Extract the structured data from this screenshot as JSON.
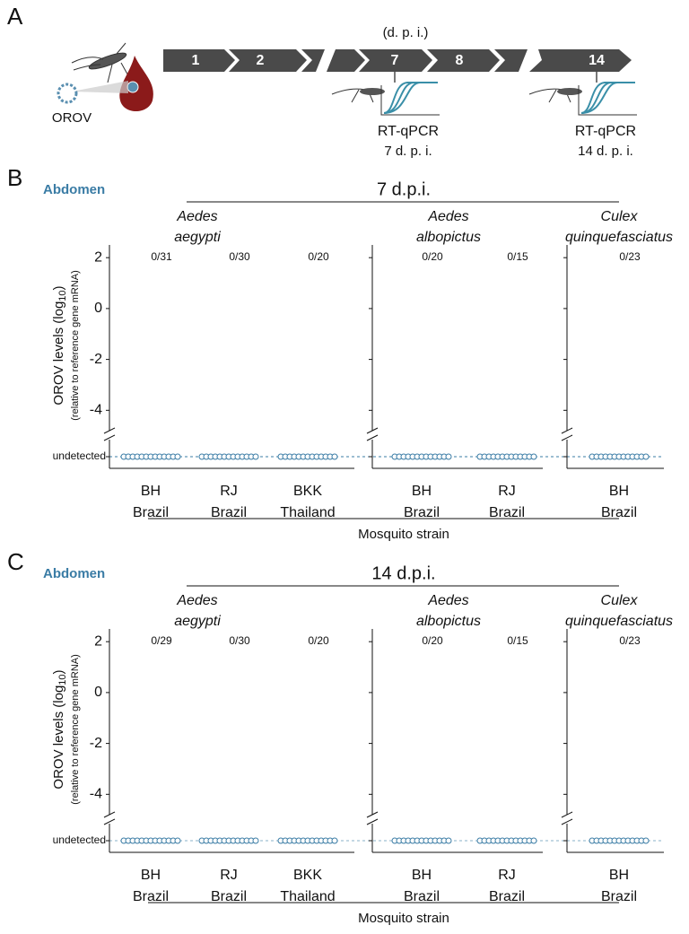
{
  "panel_a": {
    "letter": "A",
    "dpi_label": "(d. p. i.)",
    "days": [
      "1",
      "2",
      "7",
      "8",
      "14"
    ],
    "virus": "OROV",
    "assays": [
      {
        "method": "RT-qPCR",
        "time": "7 d. p. i."
      },
      {
        "method": "RT-qPCR",
        "time": "14 d. p. i."
      }
    ]
  },
  "chart_data": [
    {
      "type": "strip",
      "panel": "B",
      "tissue": "Abdomen",
      "title": "7 d.p.i.",
      "ylabel": {
        "prefix": "OROV levels (log",
        "sub": "10",
        "suffix": ")",
        "note": "(relative to reference gene mRNA)"
      },
      "xlabel": "Mosquito strain",
      "undetected_label": "undetected",
      "ylim": [
        -4.8,
        2.5
      ],
      "yticks": [
        2,
        0,
        -2,
        -4
      ],
      "color": "#3a7ca5",
      "groups": [
        {
          "species": [
            "Aedes",
            "aegypti"
          ],
          "strains": [
            {
              "label": [
                "BH",
                "Brazil"
              ],
              "count": "0/31"
            },
            {
              "label": [
                "RJ",
                "Brazil"
              ],
              "count": "0/30"
            },
            {
              "label": [
                "BKK",
                "Thailand"
              ],
              "count": "0/20"
            }
          ]
        },
        {
          "species": [
            "Aedes",
            "albopictus"
          ],
          "strains": [
            {
              "label": [
                "BH",
                "Brazil"
              ],
              "count": "0/20"
            },
            {
              "label": [
                "RJ",
                "Brazil"
              ],
              "count": "0/15"
            }
          ]
        },
        {
          "species": [
            "Culex",
            "quinquefasciatus"
          ],
          "strains": [
            {
              "label": [
                "BH",
                "Brazil"
              ],
              "count": "0/23"
            }
          ]
        }
      ]
    },
    {
      "type": "strip",
      "panel": "C",
      "tissue": "Abdomen",
      "title": "14 d.p.i.",
      "ylabel": {
        "prefix": "OROV levels (log",
        "sub": "10",
        "suffix": ")",
        "note": "(relative to reference gene mRNA)"
      },
      "xlabel": "Mosquito strain",
      "undetected_label": "undetected",
      "ylim": [
        -4.8,
        2.5
      ],
      "yticks": [
        2,
        0,
        -2,
        -4
      ],
      "color": "#3a7ca5",
      "groups": [
        {
          "species": [
            "Aedes",
            "aegypti"
          ],
          "strains": [
            {
              "label": [
                "BH",
                "Brazil"
              ],
              "count": "0/29"
            },
            {
              "label": [
                "RJ",
                "Brazil"
              ],
              "count": "0/30"
            },
            {
              "label": [
                "BKK",
                "Thailand"
              ],
              "count": "0/20"
            }
          ]
        },
        {
          "species": [
            "Aedes",
            "albopictus"
          ],
          "strains": [
            {
              "label": [
                "BH",
                "Brazil"
              ],
              "count": "0/20"
            },
            {
              "label": [
                "RJ",
                "Brazil"
              ],
              "count": "0/15"
            }
          ]
        },
        {
          "species": [
            "Culex",
            "quinquefasciatus"
          ],
          "strains": [
            {
              "label": [
                "BH",
                "Brazil"
              ],
              "count": "0/23"
            }
          ]
        }
      ]
    }
  ]
}
